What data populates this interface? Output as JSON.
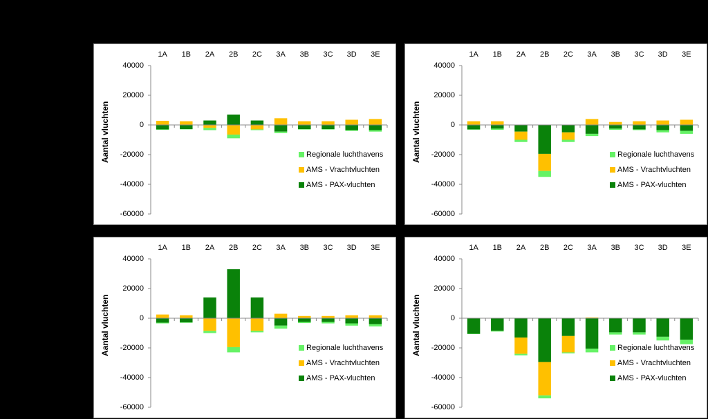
{
  "chart_data": [
    {
      "type": "bar",
      "stacked": true,
      "ylabel": "Aantal vluchten",
      "legend": "lower right",
      "grid": false,
      "categories": [
        "1A",
        "1B",
        "2A",
        "2B",
        "2C",
        "3A",
        "3B",
        "3C",
        "3D",
        "3E"
      ],
      "ylim": [
        -60000,
        40000
      ],
      "yticks": [
        -60000,
        -40000,
        -20000,
        0,
        20000,
        40000
      ],
      "series": [
        {
          "name": "AMS - PAX-vluchten",
          "color": "#0a820a",
          "values": [
            -3000,
            -2800,
            3000,
            7000,
            3000,
            -4500,
            -2800,
            -2800,
            -3500,
            -3500
          ]
        },
        {
          "name": "AMS - Vrachtvluchten",
          "color": "#ffc000",
          "values": [
            2800,
            2500,
            -2000,
            -6500,
            -3000,
            4500,
            2500,
            2500,
            3500,
            4000
          ]
        },
        {
          "name": "Regionale luchthavens",
          "color": "#66f266",
          "values": [
            -300,
            -200,
            -1500,
            -2500,
            -500,
            -1000,
            -300,
            -300,
            -500,
            -1000
          ]
        }
      ]
    },
    {
      "type": "bar",
      "stacked": true,
      "ylabel": "Aantal vluchten",
      "legend": "lower right",
      "grid": false,
      "categories": [
        "1A",
        "1B",
        "2A",
        "2B",
        "2C",
        "3A",
        "3B",
        "3C",
        "3D",
        "3E"
      ],
      "ylim": [
        -60000,
        40000
      ],
      "yticks": [
        -60000,
        -40000,
        -20000,
        0,
        20000,
        40000
      ],
      "series": [
        {
          "name": "AMS - PAX-vluchten",
          "color": "#0a820a",
          "values": [
            -3000,
            -2500,
            -4500,
            -19500,
            -5000,
            -6000,
            -2500,
            -3000,
            -3500,
            -4000
          ]
        },
        {
          "name": "AMS - Vrachtvluchten",
          "color": "#ffc000",
          "values": [
            2500,
            2500,
            -5500,
            -11500,
            -5000,
            4000,
            2000,
            2500,
            3000,
            3500
          ]
        },
        {
          "name": "Regionale luchthavens",
          "color": "#66f266",
          "values": [
            -200,
            -800,
            -1500,
            -4000,
            -1500,
            -1500,
            -800,
            -500,
            -1500,
            -2000
          ]
        }
      ]
    },
    {
      "type": "bar",
      "stacked": true,
      "ylabel": "Aantal vluchten",
      "legend": "lower right",
      "grid": false,
      "categories": [
        "1A",
        "1B",
        "2A",
        "2B",
        "2C",
        "3A",
        "3B",
        "3C",
        "3D",
        "3E"
      ],
      "ylim": [
        -60000,
        40000
      ],
      "yticks": [
        -60000,
        -40000,
        -20000,
        0,
        20000,
        40000
      ],
      "series": [
        {
          "name": "AMS - PAX-vluchten",
          "color": "#0a820a",
          "values": [
            -3000,
            -2800,
            14000,
            33000,
            14000,
            -5000,
            -2500,
            -2500,
            -3500,
            -4000
          ]
        },
        {
          "name": "AMS - Vrachtvluchten",
          "color": "#ffc000",
          "values": [
            2500,
            2000,
            -8500,
            -19500,
            -8500,
            3000,
            1500,
            1500,
            2000,
            2000
          ]
        },
        {
          "name": "Regionale luchthavens",
          "color": "#66f266",
          "values": [
            -500,
            -300,
            -1500,
            -3500,
            -1000,
            -2000,
            -800,
            -1000,
            -1500,
            -1500
          ]
        }
      ]
    },
    {
      "type": "bar",
      "stacked": true,
      "ylabel": "Aantal vluchten",
      "legend": "lower right",
      "grid": false,
      "categories": [
        "1A",
        "1B",
        "2A",
        "2B",
        "2C",
        "3A",
        "3B",
        "3C",
        "3D",
        "3E"
      ],
      "ylim": [
        -60000,
        40000
      ],
      "yticks": [
        -60000,
        -40000,
        -20000,
        0,
        20000,
        40000
      ],
      "series": [
        {
          "name": "AMS - PAX-vluchten",
          "color": "#0a820a",
          "values": [
            -10500,
            -8500,
            -13000,
            -29500,
            -12000,
            -20500,
            -9500,
            -9500,
            -12500,
            -14500
          ]
        },
        {
          "name": "AMS - Vrachtvluchten",
          "color": "#ffc000",
          "values": [
            0,
            0,
            -11000,
            -22500,
            -11000,
            500,
            0,
            0,
            0,
            0
          ]
        },
        {
          "name": "Regionale luchthavens",
          "color": "#66f266",
          "values": [
            -200,
            -500,
            -1000,
            -2000,
            -700,
            -2500,
            -1500,
            -1500,
            -2500,
            -3000
          ]
        }
      ]
    }
  ]
}
